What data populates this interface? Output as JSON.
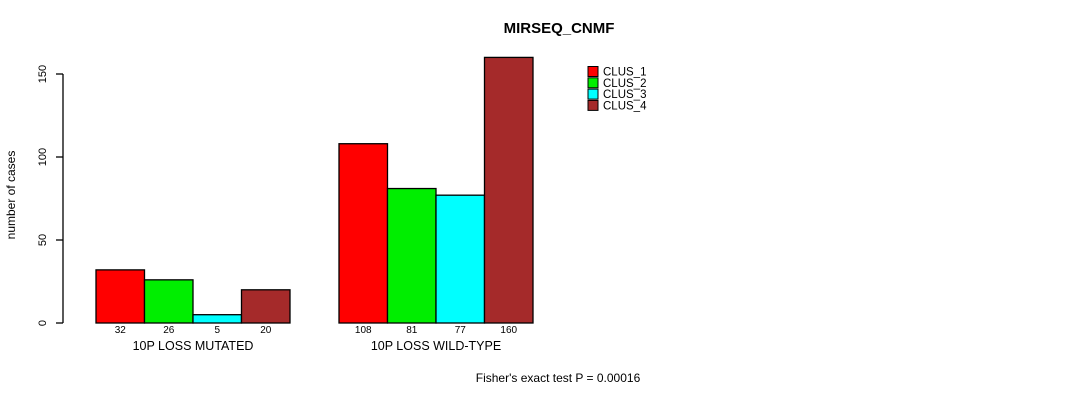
{
  "chart_data": {
    "type": "bar",
    "title": "MIRSEQ_CNMF",
    "ylabel": "number of cases",
    "xlabel": "",
    "footnote": "Fisher's exact test P = 0.00016",
    "categories": [
      "10P LOSS MUTATED",
      "10P LOSS WILD-TYPE"
    ],
    "series": [
      {
        "name": "CLUS_1",
        "color": "#ff0000",
        "values": [
          32,
          108
        ]
      },
      {
        "name": "CLUS_2",
        "color": "#00ee00",
        "values": [
          26,
          81
        ]
      },
      {
        "name": "CLUS_3",
        "color": "#00ffff",
        "values": [
          5,
          77
        ]
      },
      {
        "name": "CLUS_4",
        "color": "#a52a2a",
        "values": [
          20,
          160
        ]
      }
    ],
    "bar_value_labels": [
      [
        "32",
        "26",
        "5",
        "20"
      ],
      [
        "108",
        "81",
        "77",
        "160"
      ]
    ],
    "yticks": [
      0,
      50,
      100,
      150
    ],
    "ylim": [
      0,
      160
    ],
    "grid": false,
    "legend_position": "top-right",
    "bar_border_color": "#000000",
    "text_color": "#000000"
  }
}
